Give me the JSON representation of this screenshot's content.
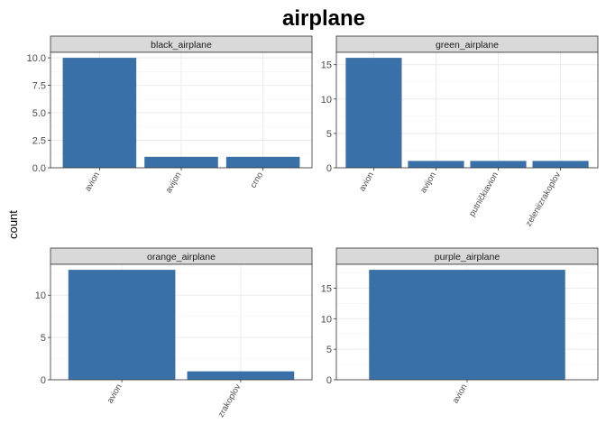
{
  "chart_data": {
    "type": "bar",
    "title": "airplane",
    "ylabel": "count",
    "bar_color": "#3a70a8",
    "panels": [
      {
        "name": "black_airplane",
        "categories": [
          "avion",
          "avijon",
          "crno"
        ],
        "values": [
          10,
          1,
          1
        ],
        "ylim": [
          0,
          10.5
        ],
        "yticks": [
          0,
          2.5,
          5,
          7.5,
          10
        ],
        "ytick_labels": [
          "0.0",
          "2.5",
          "5.0",
          "7.5",
          "10.0"
        ]
      },
      {
        "name": "green_airplane",
        "categories": [
          "avion",
          "avijon",
          "putničkiavion",
          "zeleniizrakoplov"
        ],
        "values": [
          16,
          1,
          1,
          1
        ],
        "ylim": [
          0,
          16.8
        ],
        "yticks": [
          0,
          5,
          10,
          15
        ],
        "ytick_labels": [
          "0",
          "5",
          "10",
          "15"
        ]
      },
      {
        "name": "orange_airplane",
        "categories": [
          "avion",
          "zrakoplov"
        ],
        "values": [
          13,
          1
        ],
        "ylim": [
          0,
          13.65
        ],
        "yticks": [
          0,
          5,
          10
        ],
        "ytick_labels": [
          "0",
          "5",
          "10"
        ]
      },
      {
        "name": "purple_airplane",
        "categories": [
          "avion"
        ],
        "values": [
          18
        ],
        "ylim": [
          0,
          18.9
        ],
        "yticks": [
          0,
          5,
          10,
          15
        ],
        "ytick_labels": [
          "0",
          "5",
          "10",
          "15"
        ]
      }
    ]
  }
}
